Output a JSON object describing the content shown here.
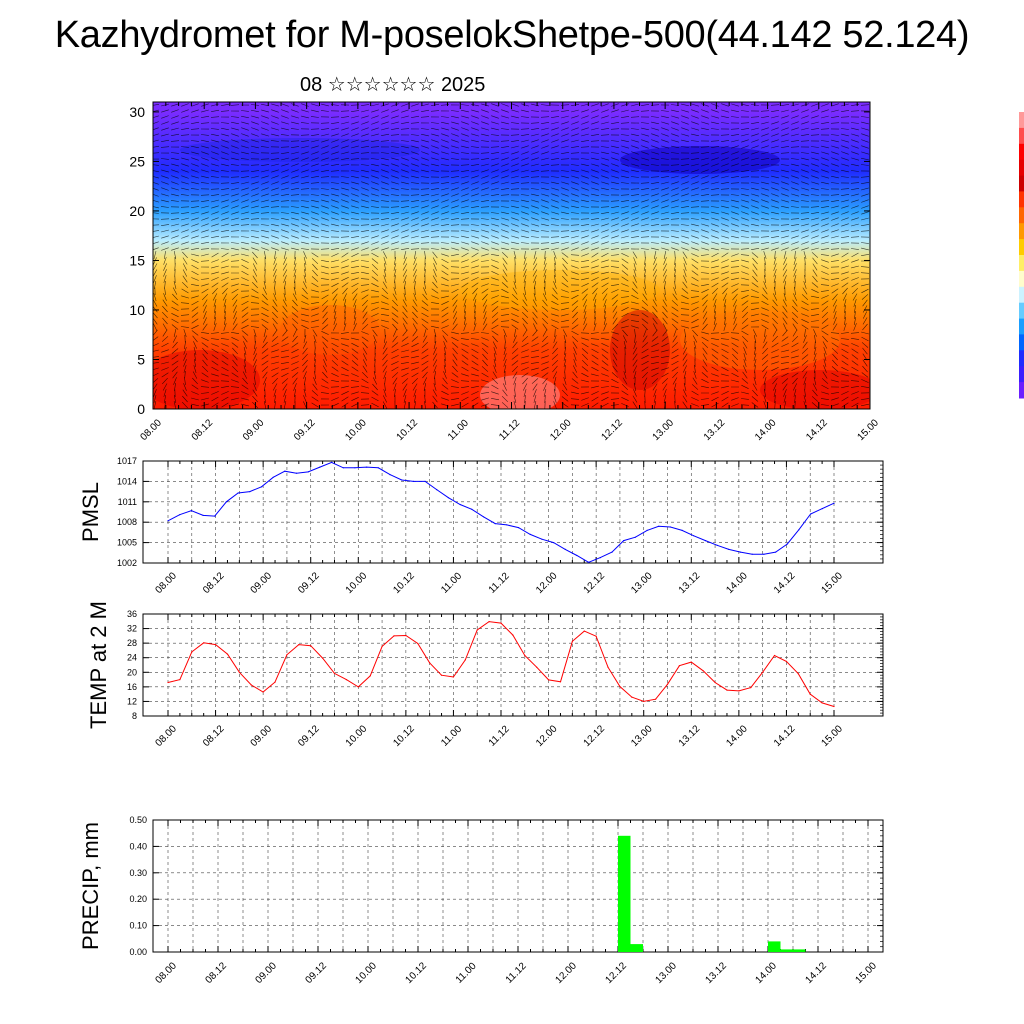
{
  "header": {
    "title": "Kazhydromet for M-poselokShetpe-500(44.142 52.124)",
    "subtitle": "08 ☆☆☆☆☆☆ 2025"
  },
  "chart_data": [
    {
      "id": "cross-section",
      "type": "heatmap",
      "title": "",
      "xlabel": "",
      "ylabel": "",
      "x_tick_labels": [
        "08.00",
        "08.12",
        "09.00",
        "09.12",
        "10.00",
        "10.12",
        "11.00",
        "11.12",
        "12.00",
        "12.12",
        "13.00",
        "13.12",
        "14.00",
        "14.12",
        "15.00"
      ],
      "ylim": [
        0,
        31
      ],
      "y_ticks": [
        0,
        5,
        10,
        15,
        20,
        25,
        30
      ],
      "colormap": [
        "#ff0000",
        "#ff6a00",
        "#ffc21a",
        "#fff7b0",
        "#a6e6ff",
        "#1a9fff",
        "#1f2cff",
        "#6a1fff"
      ],
      "color_stops_by_level": [
        {
          "level": 0,
          "color": "#ff1a00"
        },
        {
          "level": 6,
          "color": "#ff4000"
        },
        {
          "level": 11,
          "color": "#ff9a00"
        },
        {
          "level": 15,
          "color": "#ffe066"
        },
        {
          "level": 17,
          "color": "#b8ecff"
        },
        {
          "level": 20,
          "color": "#2a9fff"
        },
        {
          "level": 24,
          "color": "#1f2cff"
        },
        {
          "level": 30,
          "color": "#7a2cff"
        }
      ],
      "overlay": "wind-vectors",
      "grid": false
    },
    {
      "id": "pmsl",
      "type": "line",
      "ylabel": "PMSL",
      "x_tick_labels": [
        "08.00",
        "08.12",
        "09.00",
        "09.12",
        "10.00",
        "10.12",
        "11.00",
        "11.12",
        "12.00",
        "12.12",
        "13.00",
        "13.12",
        "14.00",
        "14.12",
        "15.00"
      ],
      "ylim": [
        1002,
        1017
      ],
      "y_ticks": [
        1002,
        1005,
        1008,
        1011,
        1014,
        1017
      ],
      "grid": true,
      "series": [
        {
          "color": "#0000ff",
          "values": [
            1008.2,
            1009.1,
            1009.7,
            1009.0,
            1008.9,
            1011.0,
            1012.3,
            1012.5,
            1013.2,
            1014.6,
            1015.5,
            1015.2,
            1015.4,
            1016.1,
            1016.8,
            1016.0,
            1016.0,
            1016.1,
            1016.0,
            1015.0,
            1014.2,
            1014.0,
            1014.0,
            1012.8,
            1011.6,
            1010.6,
            1009.9,
            1008.8,
            1007.8,
            1007.6,
            1007.2,
            1006.2,
            1005.5,
            1005.0,
            1004.0,
            1003.1,
            1002.1,
            1002.8,
            1003.6,
            1005.3,
            1005.8,
            1006.8,
            1007.4,
            1007.3,
            1006.8,
            1006.0,
            1005.3,
            1004.6,
            1004.0,
            1003.6,
            1003.3,
            1003.3,
            1003.6,
            1004.8,
            1006.9,
            1009.2,
            1010.0,
            1010.8
          ]
        }
      ]
    },
    {
      "id": "temp2m",
      "type": "line",
      "ylabel": "TEMP at 2 M",
      "x_tick_labels": [
        "08.00",
        "08.12",
        "09.00",
        "09.12",
        "10.00",
        "10.12",
        "11.00",
        "11.12",
        "12.00",
        "12.12",
        "13.00",
        "13.12",
        "14.00",
        "14.12",
        "15.00"
      ],
      "ylim": [
        8,
        36
      ],
      "y_ticks": [
        8,
        12,
        16,
        20,
        24,
        28,
        32,
        36
      ],
      "grid": true,
      "series": [
        {
          "color": "#ff0000",
          "values": [
            17.2,
            18.0,
            25.6,
            28.1,
            27.6,
            25.0,
            20.0,
            16.5,
            14.6,
            17.3,
            24.8,
            27.6,
            27.3,
            23.9,
            19.7,
            18.0,
            16.0,
            19.0,
            27.1,
            30.0,
            30.1,
            27.9,
            22.6,
            19.2,
            18.7,
            23.4,
            31.6,
            33.9,
            33.5,
            30.2,
            24.6,
            21.4,
            17.9,
            17.4,
            28.5,
            31.3,
            29.9,
            21.4,
            16.1,
            13.2,
            12.0,
            12.6,
            16.7,
            21.8,
            22.8,
            20.4,
            17.2,
            15.1,
            14.9,
            15.8,
            20.0,
            24.6,
            23.0,
            19.6,
            14.0,
            11.6,
            10.6
          ]
        }
      ]
    },
    {
      "id": "precip",
      "type": "bar",
      "ylabel": "PRECIP, mm",
      "x_tick_labels": [
        "08.00",
        "08.12",
        "09.00",
        "09.12",
        "10.00",
        "10.12",
        "11.00",
        "11.12",
        "12.00",
        "12.12",
        "13.00",
        "13.12",
        "14.00",
        "14.12",
        "15.00"
      ],
      "ylim": [
        0,
        0.5
      ],
      "y_ticks": [
        "0.00",
        "0.10",
        "0.20",
        "0.30",
        "0.40",
        "0.50"
      ],
      "grid": true,
      "bar_color": "#00ff00",
      "bars": [
        {
          "step": 36,
          "value": 0.44
        },
        {
          "step": 37,
          "value": 0.03
        },
        {
          "step": 48,
          "value": 0.04
        },
        {
          "step": 49,
          "value": 0.01
        },
        {
          "step": 50,
          "value": 0.01
        }
      ]
    }
  ],
  "colorbar": {
    "colors": [
      "#ff9999",
      "#ff4d4d",
      "#ff0000",
      "#e60000",
      "#cc0000",
      "#ff3300",
      "#ff6600",
      "#ff9900",
      "#ffcc00",
      "#ffee66",
      "#fffccc",
      "#ccf2ff",
      "#66ccff",
      "#1a9fff",
      "#0066ff",
      "#1f2cff",
      "#3a1fff",
      "#6a1fff"
    ]
  }
}
